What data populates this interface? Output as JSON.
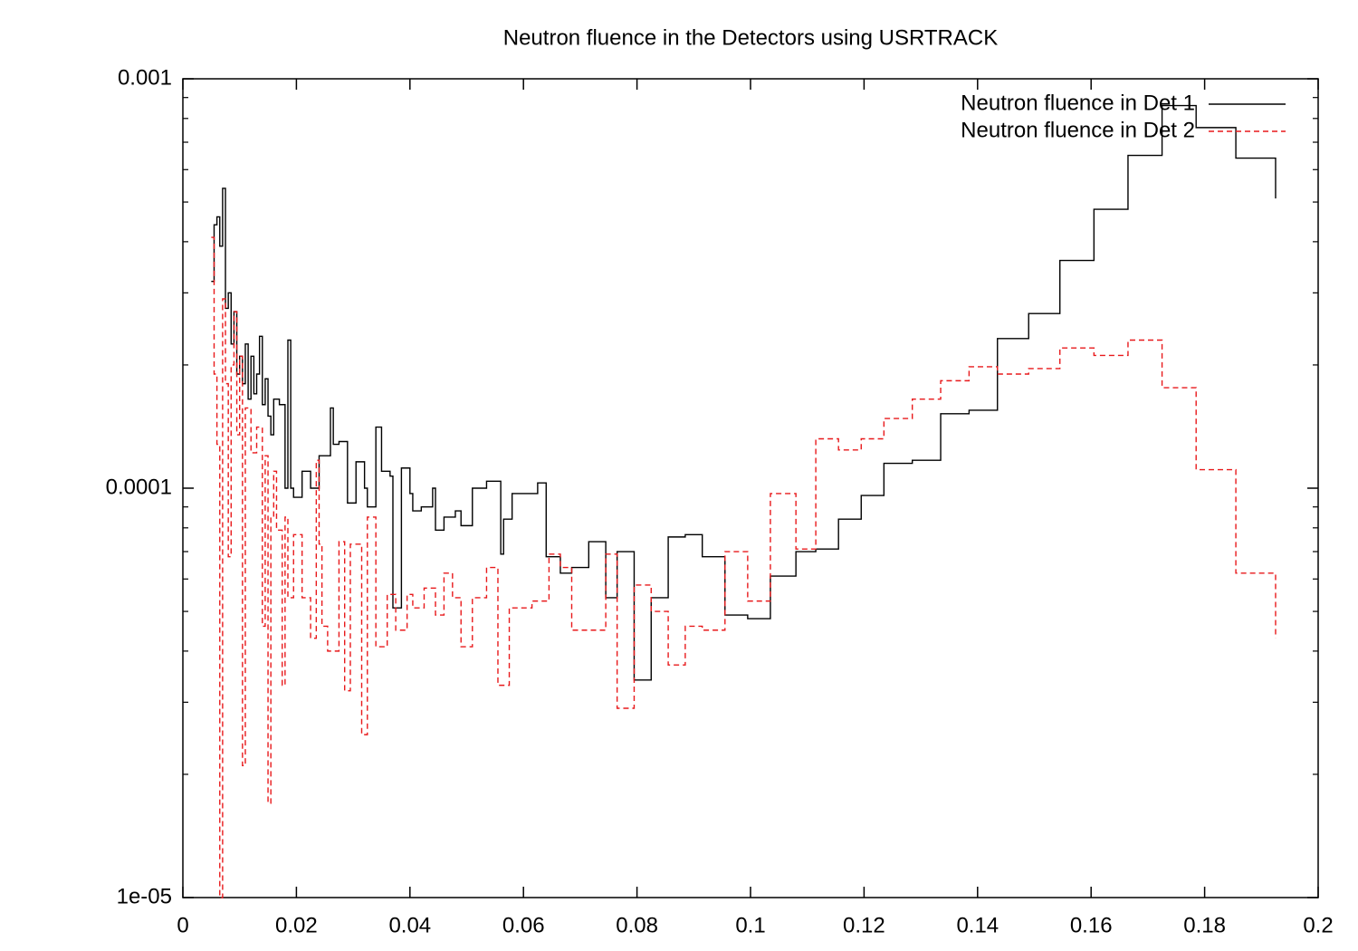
{
  "chart_data": {
    "type": "line",
    "step": true,
    "title": "Neutron fluence in the Detectors using USRTRACK",
    "xlim": [
      0,
      0.2
    ],
    "xticks": [
      0,
      0.02,
      0.04,
      0.06,
      0.08,
      0.1,
      0.12,
      0.14,
      0.16,
      0.18,
      0.2
    ],
    "ylim": [
      1e-05,
      0.001
    ],
    "log_y": true,
    "yticks": [
      {
        "value": 1e-05,
        "label": "1e-05"
      },
      0.0001,
      0.001
    ],
    "yminor_ticks": [
      2e-05,
      3e-05,
      4e-05,
      5e-05,
      6e-05,
      7e-05,
      8e-05,
      9e-05,
      0.0002,
      0.0003,
      0.0004,
      0.0005,
      0.0006,
      0.0007,
      0.0008,
      0.0009
    ],
    "legend_position": "top-right",
    "series": [
      {
        "name": "Neutron fluence in Det 1",
        "color": "#000000",
        "dash": false,
        "x": [
          0.005,
          0.0055,
          0.006,
          0.0065,
          0.007,
          0.0075,
          0.008,
          0.0085,
          0.009,
          0.0095,
          0.01,
          0.0105,
          0.011,
          0.0115,
          0.012,
          0.0125,
          0.013,
          0.0135,
          0.014,
          0.0145,
          0.015,
          0.0155,
          0.016,
          0.017,
          0.018,
          0.0185,
          0.019,
          0.0195,
          0.021,
          0.0225,
          0.024,
          0.026,
          0.0265,
          0.0275,
          0.029,
          0.0305,
          0.032,
          0.0325,
          0.034,
          0.035,
          0.0365,
          0.037,
          0.0385,
          0.04,
          0.0405,
          0.042,
          0.044,
          0.0445,
          0.046,
          0.048,
          0.049,
          0.051,
          0.0535,
          0.056,
          0.0565,
          0.058,
          0.0625,
          0.064,
          0.0665,
          0.0685,
          0.0715,
          0.0745,
          0.0765,
          0.0795,
          0.0825,
          0.0855,
          0.0885,
          0.0915,
          0.0955,
          0.0995,
          0.1035,
          0.108,
          0.1115,
          0.1155,
          0.1195,
          0.1235,
          0.1285,
          0.1335,
          0.1385,
          0.1435,
          0.149,
          0.1545,
          0.1605,
          0.1665,
          0.1725,
          0.1785,
          0.1855,
          0.1925
        ],
        "values": [
          0.00032,
          0.00044,
          0.00046,
          0.00039,
          0.00054,
          0.000275,
          0.0003,
          0.000225,
          0.00027,
          0.00019,
          0.00021,
          0.00018,
          0.000225,
          0.000165,
          0.00021,
          0.00017,
          0.00019,
          0.000235,
          0.00016,
          0.000185,
          0.00015,
          0.000135,
          0.000165,
          0.00016,
          0.0001,
          0.00023,
          0.0001,
          9.5e-05,
          0.00011,
          0.0001,
          0.00012,
          0.000157,
          0.000128,
          0.00013,
          9.2e-05,
          0.000116,
          0.0001,
          9e-05,
          0.000141,
          0.00011,
          0.000107,
          5.1e-05,
          0.000112,
          9.7e-05,
          8.8e-05,
          9e-05,
          0.0001,
          7.9e-05,
          8.5e-05,
          8.8e-05,
          8.1e-05,
          0.0001,
          0.000104,
          6.9e-05,
          8.4e-05,
          9.7e-05,
          0.000103,
          6.8e-05,
          6.2e-05,
          6.4e-05,
          7.4e-05,
          5.4e-05,
          7e-05,
          3.4e-05,
          5.4e-05,
          7.6e-05,
          7.7e-05,
          6.8e-05,
          4.9e-05,
          4.8e-05,
          6.1e-05,
          7e-05,
          7.1e-05,
          8.4e-05,
          9.6e-05,
          0.000115,
          0.000117,
          0.000152,
          0.000155,
          0.000232,
          0.000267,
          0.00036,
          0.00048,
          0.00065,
          0.00086,
          0.00076,
          0.00064,
          0.00051
        ]
      },
      {
        "name": "Neutron fluence in Det 2",
        "color": "#e8191b",
        "dash": true,
        "x": [
          0.005,
          0.0055,
          0.006,
          0.0065,
          0.007,
          0.0075,
          0.008,
          0.0085,
          0.009,
          0.0095,
          0.01,
          0.0105,
          0.011,
          0.012,
          0.013,
          0.014,
          0.0145,
          0.015,
          0.0155,
          0.016,
          0.0165,
          0.0175,
          0.018,
          0.0185,
          0.0195,
          0.021,
          0.0225,
          0.0235,
          0.024,
          0.0245,
          0.0255,
          0.0275,
          0.0285,
          0.0295,
          0.0315,
          0.0325,
          0.034,
          0.036,
          0.0375,
          0.0395,
          0.0405,
          0.0425,
          0.0445,
          0.046,
          0.0475,
          0.049,
          0.051,
          0.0535,
          0.0555,
          0.0575,
          0.0615,
          0.0645,
          0.0665,
          0.0685,
          0.0745,
          0.0765,
          0.0795,
          0.0825,
          0.0855,
          0.0885,
          0.0915,
          0.0955,
          0.0995,
          0.1035,
          0.108,
          0.1115,
          0.1155,
          0.1195,
          0.1235,
          0.1285,
          0.1335,
          0.1385,
          0.1435,
          0.149,
          0.1545,
          0.1605,
          0.1665,
          0.1725,
          0.1785,
          0.1855,
          0.1925
        ],
        "values": [
          0.00041,
          0.00019,
          0.000128,
          1e-05,
          0.00029,
          0.00018,
          6.8e-05,
          0.0002,
          0.00027,
          0.000135,
          0.00021,
          2.1e-05,
          0.000157,
          0.000122,
          0.000141,
          4.6e-05,
          0.00012,
          1.7e-05,
          8.5e-05,
          0.00011,
          7.9e-05,
          3.3e-05,
          8.5e-05,
          5.4e-05,
          7.7e-05,
          5.4e-05,
          4.3e-05,
          0.000117,
          7.3e-05,
          4.6e-05,
          4e-05,
          7.4e-05,
          3.2e-05,
          7.3e-05,
          2.5e-05,
          8.5e-05,
          4.1e-05,
          5.5e-05,
          4.5e-05,
          5.5e-05,
          5.1e-05,
          5.7e-05,
          4.9e-05,
          6.2e-05,
          5.4e-05,
          4.1e-05,
          5.4e-05,
          6.4e-05,
          3.3e-05,
          5.1e-05,
          5.3e-05,
          6.9e-05,
          6.4e-05,
          4.5e-05,
          6.9e-05,
          2.9e-05,
          5.8e-05,
          5e-05,
          3.7e-05,
          4.6e-05,
          4.5e-05,
          7e-05,
          5.3e-05,
          9.7e-05,
          7.1e-05,
          0.000132,
          0.000124,
          0.000132,
          0.000148,
          0.000165,
          0.000183,
          0.000198,
          0.00019,
          0.000196,
          0.00022,
          0.000211,
          0.00023,
          0.000176,
          0.000111,
          6.2e-05,
          4.3e-05
        ]
      }
    ]
  }
}
